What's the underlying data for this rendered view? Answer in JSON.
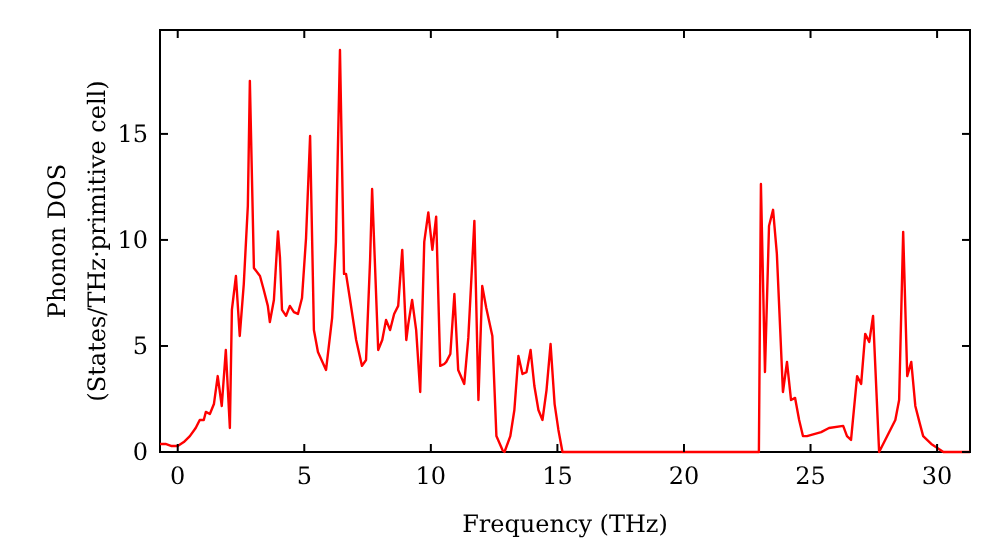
{
  "chart_data": {
    "type": "line",
    "xlabel": "Frequency (THz)",
    "ylabel": "Phonon DOS\n(States/THz·primitive cell)",
    "xlim": [
      -0.7,
      31.3
    ],
    "ylim": [
      0,
      19.9
    ],
    "xticks": [
      0,
      5,
      10,
      15,
      20,
      25,
      30
    ],
    "yticks": [
      0,
      5,
      10,
      15
    ],
    "grid": false,
    "marker": "none",
    "line_style": "solid",
    "series": [
      {
        "color": "#ff0000",
        "x": [
          -0.7,
          -0.48,
          -0.24,
          0,
          0.24,
          0.48,
          0.71,
          0.87,
          1.03,
          1.11,
          1.27,
          1.43,
          1.58,
          1.74,
          1.9,
          2.06,
          2.14,
          2.3,
          2.45,
          2.61,
          2.77,
          2.85,
          3.01,
          3.25,
          3.4,
          3.56,
          3.64,
          3.8,
          3.96,
          4.04,
          4.12,
          4.28,
          4.43,
          4.59,
          4.75,
          4.91,
          5.07,
          5.23,
          5.38,
          5.54,
          5.86,
          6.1,
          6.25,
          6.41,
          6.57,
          6.65,
          6.81,
          7.05,
          7.28,
          7.44,
          7.6,
          7.68,
          7.92,
          8.08,
          8.23,
          8.39,
          8.55,
          8.71,
          8.87,
          9.03,
          9.11,
          9.26,
          9.42,
          9.58,
          9.74,
          9.9,
          10.06,
          10.21,
          10.37,
          10.53,
          10.61,
          10.77,
          10.93,
          11.08,
          11.32,
          11.48,
          11.72,
          11.88,
          12.03,
          12.19,
          12.43,
          12.59,
          12.83,
          12.91,
          13.14,
          13.3,
          13.46,
          13.62,
          13.78,
          13.94,
          14.09,
          14.25,
          14.41,
          14.57,
          14.73,
          14.89,
          15.04,
          15.2,
          16.71,
          22.96,
          23.04,
          23.2,
          23.36,
          23.52,
          23.67,
          23.91,
          24.07,
          24.23,
          24.39,
          24.55,
          24.7,
          24.86,
          25.42,
          25.73,
          26.29,
          26.44,
          26.6,
          26.84,
          27,
          27.16,
          27.32,
          27.47,
          27.71,
          28.35,
          28.5,
          28.66,
          28.82,
          28.98,
          29.14,
          29.3,
          29.45,
          29.77,
          30.25,
          31.3
        ],
        "values": [
          0.38,
          0.38,
          0.28,
          0.28,
          0.47,
          0.75,
          1.13,
          1.51,
          1.51,
          1.89,
          1.79,
          2.26,
          3.58,
          2.17,
          4.81,
          1.13,
          6.7,
          8.3,
          5.47,
          7.92,
          11.6,
          17.5,
          8.68,
          8.3,
          7.64,
          6.89,
          6.13,
          7.17,
          10.4,
          9.15,
          6.7,
          6.42,
          6.89,
          6.6,
          6.51,
          7.26,
          10.1,
          14.9,
          5.75,
          4.72,
          3.87,
          6.32,
          9.91,
          18.96,
          8.4,
          8.4,
          7.17,
          5.28,
          4.06,
          4.34,
          9.06,
          12.4,
          4.81,
          5.28,
          6.23,
          5.75,
          6.51,
          6.89,
          9.53,
          5.28,
          6.04,
          7.17,
          5.75,
          2.83,
          9.91,
          11.3,
          9.53,
          11.1,
          4.06,
          4.15,
          4.25,
          4.62,
          7.45,
          3.87,
          3.21,
          5.38,
          10.9,
          2.45,
          7.83,
          6.79,
          5.47,
          0.75,
          0.09,
          0,
          0.75,
          1.98,
          4.53,
          3.68,
          3.77,
          4.81,
          3.11,
          1.98,
          1.51,
          2.92,
          5.09,
          2.26,
          1.04,
          0,
          0,
          0,
          12.64,
          3.77,
          10.66,
          11.42,
          9.34,
          2.83,
          4.25,
          2.45,
          2.55,
          1.51,
          0.75,
          0.75,
          0.94,
          1.13,
          1.23,
          0.75,
          0.57,
          3.58,
          3.21,
          5.57,
          5.19,
          6.42,
          0,
          1.51,
          2.45,
          10.38,
          3.58,
          4.25,
          2.17,
          1.42,
          0.75,
          0.38,
          0,
          0
        ]
      }
    ]
  }
}
